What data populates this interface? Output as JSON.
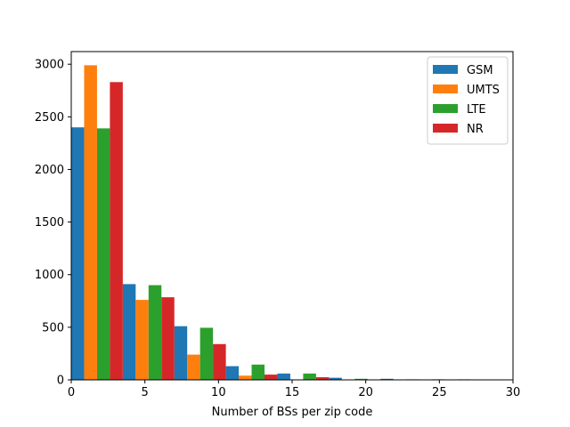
{
  "chart_data": {
    "type": "bar",
    "title": "",
    "xlabel": "Number of BSs per zip code",
    "ylabel": "",
    "xlim": [
      0,
      30
    ],
    "ylim": [
      0,
      3120
    ],
    "xticks": [
      "0",
      "5",
      "10",
      "15",
      "20",
      "25",
      "30"
    ],
    "yticks": [
      "0",
      "500",
      "1000",
      "1500",
      "2000",
      "2500",
      "3000"
    ],
    "grid": false,
    "legend_position": "top-right",
    "bin_edges": [
      0,
      3.5,
      7,
      10.5,
      14,
      17.5,
      21,
      24.5,
      28
    ],
    "series": [
      {
        "name": "GSM",
        "color": "#1f77b4",
        "values": [
          2400,
          910,
          510,
          130,
          60,
          20,
          10,
          5
        ]
      },
      {
        "name": "UMTS",
        "color": "#ff7f0e",
        "values": [
          2990,
          760,
          240,
          40,
          0,
          0,
          0,
          0
        ]
      },
      {
        "name": "LTE",
        "color": "#2ca02c",
        "values": [
          2390,
          900,
          495,
          145,
          60,
          10,
          5,
          5
        ]
      },
      {
        "name": "NR",
        "color": "#d62728",
        "values": [
          2830,
          785,
          340,
          50,
          25,
          0,
          0,
          0
        ]
      }
    ]
  }
}
